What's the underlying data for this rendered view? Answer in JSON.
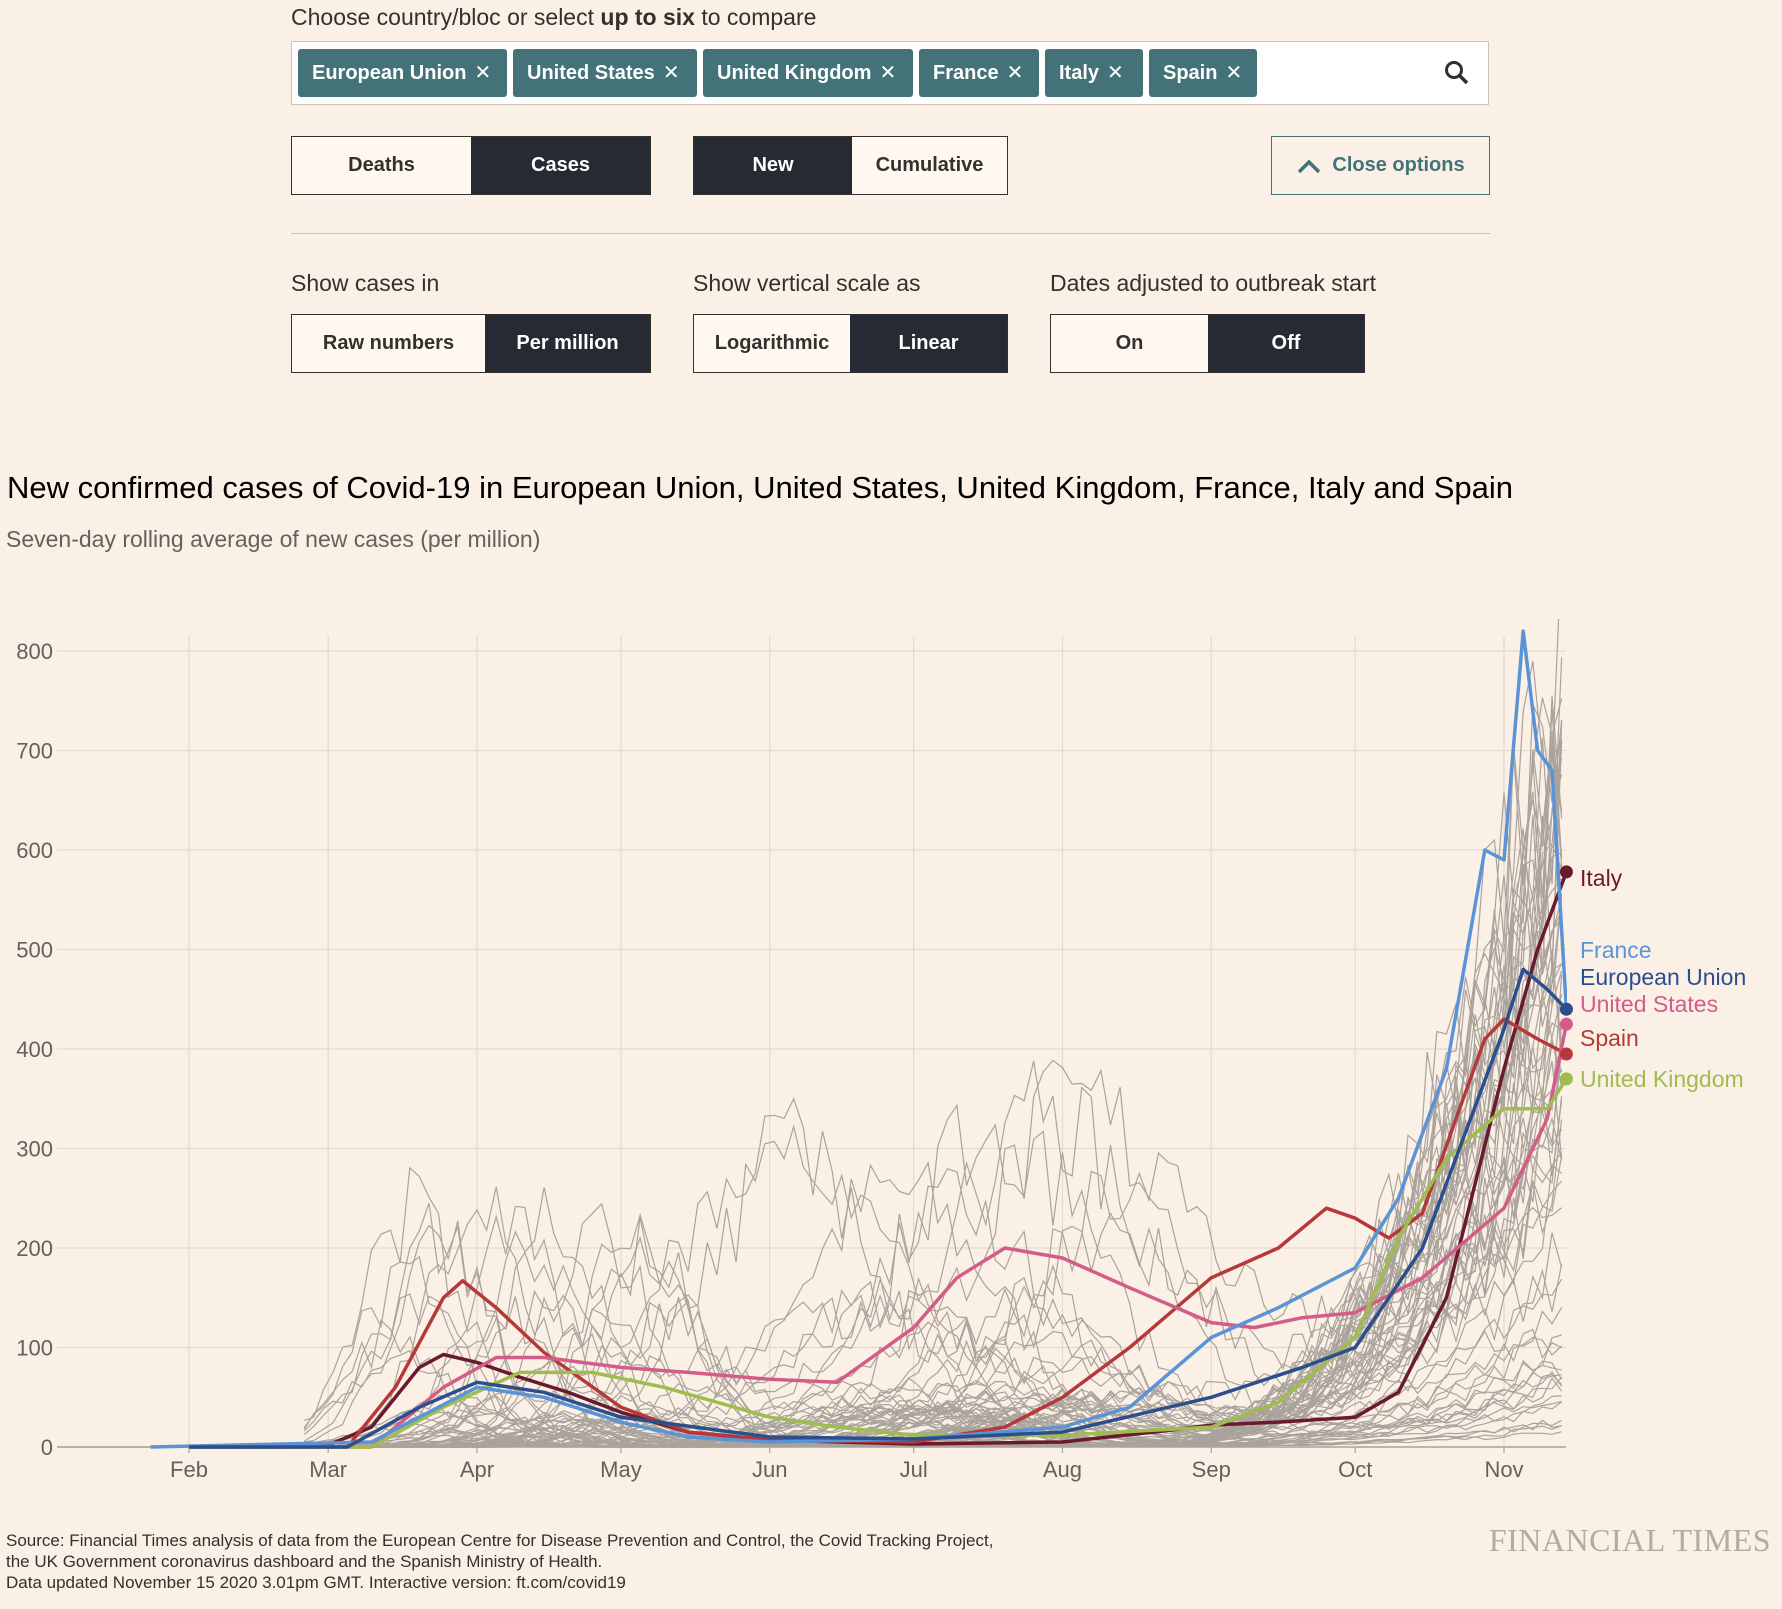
{
  "controls": {
    "prompt_prefix": "Choose country/bloc or select ",
    "prompt_bold": "up to six",
    "prompt_suffix": " to compare",
    "tags": [
      "European Union",
      "United States",
      "United Kingdom",
      "France",
      "Italy",
      "Spain"
    ],
    "remove_glyph": "✕",
    "metric": {
      "options": [
        "Deaths",
        "Cases"
      ],
      "selected": "Cases"
    },
    "mode": {
      "options": [
        "New",
        "Cumulative"
      ],
      "selected": "New"
    },
    "close_options": "Close options",
    "show_in": {
      "label": "Show cases in",
      "options": [
        "Raw numbers",
        "Per million"
      ],
      "selected": "Per million"
    },
    "scale": {
      "label": "Show vertical scale as",
      "options": [
        "Logarithmic",
        "Linear"
      ],
      "selected": "Linear"
    },
    "adjusted": {
      "label": "Dates adjusted to outbreak start",
      "options": [
        "On",
        "Off"
      ],
      "selected": "Off"
    }
  },
  "chart_data": {
    "type": "line",
    "title": "New confirmed cases of Covid-19 in European Union, United States, United Kingdom, France, Italy and Spain",
    "subtitle": "Seven-day rolling average of new cases (per million)",
    "xlabel": "",
    "ylabel": "",
    "ylim": [
      0,
      800
    ],
    "yticks": [
      "0",
      "100",
      "200",
      "300",
      "400",
      "500",
      "600",
      "700",
      "800"
    ],
    "xticks": [
      [
        "Feb",
        "2020-02-01"
      ],
      [
        "Mar",
        "2020-03-01"
      ],
      [
        "Apr",
        "2020-04-01"
      ],
      [
        "May",
        "2020-05-01"
      ],
      [
        "Jun",
        "2020-06-01"
      ],
      [
        "Jul",
        "2020-07-01"
      ],
      [
        "Aug",
        "2020-08-01"
      ],
      [
        "Sep",
        "2020-09-01"
      ],
      [
        "Oct",
        "2020-10-01"
      ],
      [
        "Nov",
        "2020-11-01"
      ]
    ],
    "xrange": [
      "2020-01-04",
      "2020-11-14"
    ],
    "grid": true,
    "series": [
      {
        "name": "Italy",
        "color": "#6b1a2e",
        "points": [
          [
            "2020-02-20",
            0
          ],
          [
            "2020-03-01",
            2
          ],
          [
            "2020-03-10",
            20
          ],
          [
            "2020-03-20",
            80
          ],
          [
            "2020-03-25",
            93
          ],
          [
            "2020-04-01",
            85
          ],
          [
            "2020-04-10",
            70
          ],
          [
            "2020-04-20",
            55
          ],
          [
            "2020-05-01",
            35
          ],
          [
            "2020-05-15",
            15
          ],
          [
            "2020-06-01",
            7
          ],
          [
            "2020-07-01",
            3
          ],
          [
            "2020-08-01",
            5
          ],
          [
            "2020-08-20",
            15
          ],
          [
            "2020-09-01",
            22
          ],
          [
            "2020-09-15",
            25
          ],
          [
            "2020-10-01",
            30
          ],
          [
            "2020-10-10",
            55
          ],
          [
            "2020-10-20",
            150
          ],
          [
            "2020-11-01",
            380
          ],
          [
            "2020-11-08",
            500
          ],
          [
            "2020-11-14",
            578
          ]
        ]
      },
      {
        "name": "Spain",
        "color": "#b5393b",
        "points": [
          [
            "2020-02-20",
            0
          ],
          [
            "2020-03-05",
            0
          ],
          [
            "2020-03-15",
            60
          ],
          [
            "2020-03-25",
            150
          ],
          [
            "2020-03-29",
            167
          ],
          [
            "2020-04-05",
            140
          ],
          [
            "2020-04-15",
            95
          ],
          [
            "2020-05-01",
            40
          ],
          [
            "2020-05-15",
            15
          ],
          [
            "2020-06-01",
            7
          ],
          [
            "2020-07-01",
            5
          ],
          [
            "2020-07-20",
            20
          ],
          [
            "2020-08-01",
            50
          ],
          [
            "2020-08-15",
            100
          ],
          [
            "2020-09-01",
            170
          ],
          [
            "2020-09-15",
            200
          ],
          [
            "2020-09-25",
            240
          ],
          [
            "2020-10-01",
            230
          ],
          [
            "2020-10-08",
            210
          ],
          [
            "2020-10-15",
            235
          ],
          [
            "2020-10-22",
            330
          ],
          [
            "2020-10-28",
            410
          ],
          [
            "2020-11-01",
            430
          ],
          [
            "2020-11-08",
            410
          ],
          [
            "2020-11-14",
            395
          ]
        ]
      },
      {
        "name": "United States",
        "color": "#d35d88",
        "points": [
          [
            "2020-03-10",
            0
          ],
          [
            "2020-03-25",
            60
          ],
          [
            "2020-04-05",
            90
          ],
          [
            "2020-04-15",
            90
          ],
          [
            "2020-05-01",
            80
          ],
          [
            "2020-05-15",
            75
          ],
          [
            "2020-06-01",
            68
          ],
          [
            "2020-06-15",
            65
          ],
          [
            "2020-07-01",
            120
          ],
          [
            "2020-07-10",
            170
          ],
          [
            "2020-07-20",
            200
          ],
          [
            "2020-08-01",
            190
          ],
          [
            "2020-08-15",
            160
          ],
          [
            "2020-09-01",
            125
          ],
          [
            "2020-09-10",
            120
          ],
          [
            "2020-09-20",
            130
          ],
          [
            "2020-10-01",
            135
          ],
          [
            "2020-10-15",
            170
          ],
          [
            "2020-11-01",
            240
          ],
          [
            "2020-11-10",
            330
          ],
          [
            "2020-11-14",
            425
          ]
        ]
      },
      {
        "name": "United Kingdom",
        "color": "#9fbd4f",
        "points": [
          [
            "2020-03-10",
            0
          ],
          [
            "2020-03-25",
            40
          ],
          [
            "2020-04-10",
            75
          ],
          [
            "2020-04-25",
            75
          ],
          [
            "2020-05-10",
            60
          ],
          [
            "2020-06-01",
            30
          ],
          [
            "2020-06-15",
            20
          ],
          [
            "2020-07-01",
            12
          ],
          [
            "2020-08-01",
            12
          ],
          [
            "2020-09-01",
            20
          ],
          [
            "2020-09-15",
            45
          ],
          [
            "2020-10-01",
            110
          ],
          [
            "2020-10-10",
            210
          ],
          [
            "2020-10-20",
            290
          ],
          [
            "2020-11-01",
            340
          ],
          [
            "2020-11-10",
            340
          ],
          [
            "2020-11-14",
            370
          ]
        ]
      },
      {
        "name": "France",
        "color": "#5b94d6",
        "points": [
          [
            "2020-01-24",
            0
          ],
          [
            "2020-03-10",
            5
          ],
          [
            "2020-04-01",
            60
          ],
          [
            "2020-04-15",
            50
          ],
          [
            "2020-05-01",
            25
          ],
          [
            "2020-05-15",
            10
          ],
          [
            "2020-06-01",
            5
          ],
          [
            "2020-07-01",
            8
          ],
          [
            "2020-08-01",
            20
          ],
          [
            "2020-08-15",
            40
          ],
          [
            "2020-09-01",
            110
          ],
          [
            "2020-09-15",
            140
          ],
          [
            "2020-10-01",
            180
          ],
          [
            "2020-10-10",
            250
          ],
          [
            "2020-10-20",
            380
          ],
          [
            "2020-10-28",
            600
          ],
          [
            "2020-11-01",
            590
          ],
          [
            "2020-11-05",
            820
          ],
          [
            "2020-11-08",
            700
          ],
          [
            "2020-11-11",
            680
          ],
          [
            "2020-11-14",
            440
          ]
        ]
      },
      {
        "name": "European Union",
        "color": "#2b4f8c",
        "points": [
          [
            "2020-03-05",
            0
          ],
          [
            "2020-03-20",
            40
          ],
          [
            "2020-04-01",
            65
          ],
          [
            "2020-04-15",
            55
          ],
          [
            "2020-05-01",
            30
          ],
          [
            "2020-06-01",
            10
          ],
          [
            "2020-07-01",
            8
          ],
          [
            "2020-08-01",
            15
          ],
          [
            "2020-09-01",
            50
          ],
          [
            "2020-09-20",
            80
          ],
          [
            "2020-10-01",
            100
          ],
          [
            "2020-10-15",
            200
          ],
          [
            "2020-11-01",
            420
          ],
          [
            "2020-11-05",
            480
          ],
          [
            "2020-11-10",
            460
          ],
          [
            "2020-11-14",
            440
          ]
        ]
      }
    ],
    "end_labels": [
      "Italy",
      "France",
      "European Union",
      "United States",
      "Spain",
      "United Kingdom"
    ]
  },
  "footer": {
    "source_lines": [
      "Source: Financial Times analysis of data from the European Centre for Disease Prevention and Control, the Covid Tracking Project,",
      "the UK Government coronavirus dashboard and the Spanish Ministry of Health.",
      "Data updated November 15 2020 3.01pm GMT. Interactive version: ft.com/covid19"
    ],
    "logo": "FINANCIAL TIMES"
  }
}
